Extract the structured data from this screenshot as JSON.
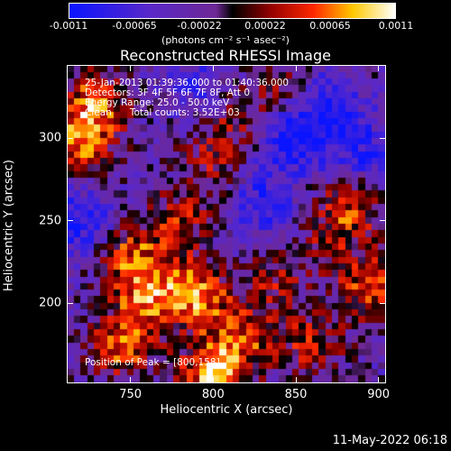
{
  "colorbar": {
    "ticks": [
      "-0.0011",
      "-0.00065",
      "-0.00022",
      "0.00022",
      "0.00065",
      "0.0011"
    ],
    "units": "(photons cm⁻² s⁻¹ asec⁻²)",
    "min": -0.0011,
    "max": 0.0011
  },
  "info": {
    "time_range": "25-Jan-2013 01:39:36.000 to 01:40:36.000",
    "detectors": "Detectors: 3F 4F 5F 6F 7F 8F, Att 0",
    "energy": "Energy Range: 25.0 - 50.0 keV",
    "clean": "Clean      Total counts: 3.52E+03",
    "peak": "Position of Peak = [800,158]"
  },
  "timestamp": "11-May-2022 06:18",
  "chart_data": {
    "type": "heatmap",
    "title": "Reconstructed RHESSI Image",
    "xlabel": "Heliocentric X (arcsec)",
    "ylabel": "Heliocentric Y (arcsec)",
    "xlim": [
      712,
      904
    ],
    "ylim": [
      152,
      344
    ],
    "xticks": [
      "750",
      "800",
      "850",
      "900"
    ],
    "xtick_values": [
      750,
      800,
      850,
      900
    ],
    "yticks": [
      "200",
      "250",
      "300"
    ],
    "ytick_values": [
      200,
      250,
      300
    ],
    "colormap": "blue-purple-red-yellow-white",
    "grid_x": 48,
    "grid_y": 48,
    "bright_regions": [
      {
        "x": 720,
        "y": 295,
        "value": 0.0008
      },
      {
        "x": 728,
        "y": 320,
        "value": 0.0009
      },
      {
        "x": 750,
        "y": 230,
        "value": 0.0007
      },
      {
        "x": 760,
        "y": 205,
        "value": 0.0008
      },
      {
        "x": 745,
        "y": 175,
        "value": 0.0009
      },
      {
        "x": 790,
        "y": 205,
        "value": 0.001
      },
      {
        "x": 800,
        "y": 158,
        "value": 0.0011
      },
      {
        "x": 780,
        "y": 250,
        "value": 0.0006
      },
      {
        "x": 800,
        "y": 285,
        "value": 0.0005
      },
      {
        "x": 820,
        "y": 180,
        "value": 0.0007
      },
      {
        "x": 838,
        "y": 215,
        "value": 0.0005
      },
      {
        "x": 860,
        "y": 175,
        "value": 0.0006
      },
      {
        "x": 895,
        "y": 210,
        "value": 0.0008
      },
      {
        "x": 885,
        "y": 260,
        "value": 0.0007
      },
      {
        "x": 870,
        "y": 240,
        "value": 0.0004
      },
      {
        "x": 840,
        "y": 330,
        "value": 0.0004
      },
      {
        "x": 810,
        "y": 315,
        "value": 0.0005
      }
    ],
    "dark_regions": [
      {
        "x": 850,
        "y": 300,
        "value": -0.0008
      },
      {
        "x": 870,
        "y": 320,
        "value": -0.0006
      },
      {
        "x": 720,
        "y": 250,
        "value": -0.0007
      },
      {
        "x": 830,
        "y": 260,
        "value": -0.0006
      },
      {
        "x": 795,
        "y": 330,
        "value": -0.0005
      },
      {
        "x": 890,
        "y": 290,
        "value": -0.0006
      }
    ]
  }
}
